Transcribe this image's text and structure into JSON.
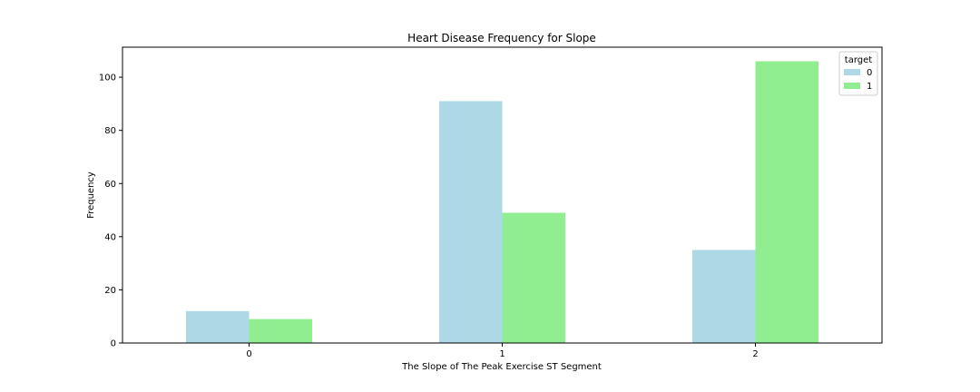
{
  "chart_data": {
    "type": "bar",
    "title": "Heart Disease Frequency for Slope",
    "xlabel": "The Slope of The Peak Exercise ST Segment",
    "ylabel": "Frequency",
    "categories": [
      "0",
      "1",
      "2"
    ],
    "yticks": [
      "0",
      "20",
      "40",
      "60",
      "80",
      "100"
    ],
    "ylim": [
      0,
      111.3
    ],
    "legend": {
      "title": "target",
      "placement": "top-right"
    },
    "series": [
      {
        "name": "0",
        "color": "#add8e6",
        "values": [
          12,
          91,
          35
        ]
      },
      {
        "name": "1",
        "color": "#90ee90",
        "values": [
          9,
          49,
          106
        ]
      }
    ],
    "grid": false
  }
}
